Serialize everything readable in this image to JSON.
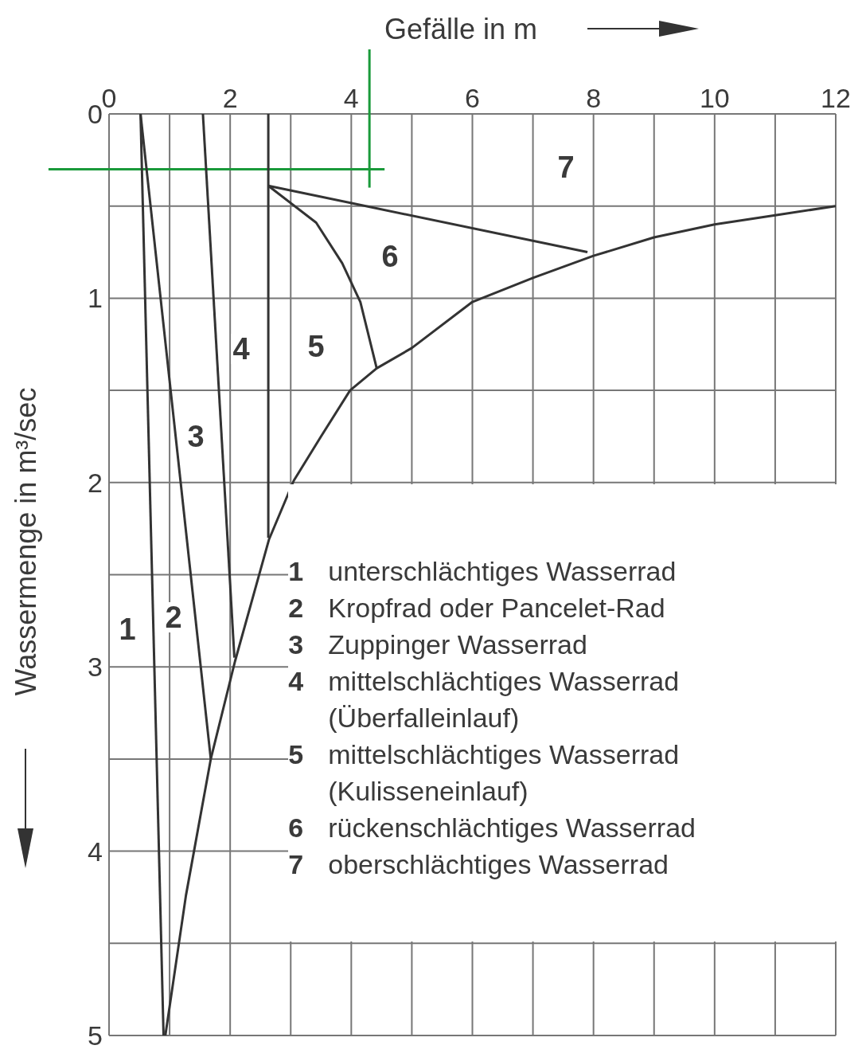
{
  "chart_data": {
    "type": "line",
    "xlabel": "Gefälle in m",
    "ylabel": "Wassermenge in m³/sec",
    "xlim": [
      0,
      12
    ],
    "xticks": [
      0,
      2,
      4,
      6,
      8,
      10,
      12,
      {
        "value": 1,
        "label": null
      },
      {
        "value": 3,
        "label": null
      },
      {
        "value": 5,
        "label": null
      },
      {
        "value": 7,
        "label": null
      },
      {
        "value": 9,
        "label": null
      },
      {
        "value": 11,
        "label": null
      }
    ],
    "ylim": [
      5,
      0
    ],
    "yticks": [
      0,
      1,
      2,
      3,
      4,
      5,
      {
        "value": 0.5,
        "label": null
      },
      {
        "value": 1.5,
        "label": null
      },
      {
        "value": 2.5,
        "label": null
      },
      {
        "value": 3.5,
        "label": null
      },
      {
        "value": 4.5,
        "label": null
      }
    ],
    "grid": true,
    "marker": "none",
    "line_style": "solid",
    "series": [
      {
        "color": "#333333",
        "x": [
          0.52,
          0.9
        ],
        "values": [
          0,
          5
        ]
      },
      {
        "color": "#333333",
        "x": [
          0.52,
          1.68
        ],
        "values": [
          0,
          3.5
        ]
      },
      {
        "color": "#333333",
        "x": [
          1.55,
          2.07
        ],
        "values": [
          0,
          2.95
        ]
      },
      {
        "color": "#333333",
        "x": [
          2.63,
          2.63
        ],
        "values": [
          0,
          2.3
        ]
      },
      {
        "color": "#333333",
        "x": [
          2.63,
          7.9
        ],
        "values": [
          0.39,
          0.75
        ]
      },
      {
        "color": "#333333",
        "x": [
          2.63,
          3.42,
          3.85,
          4.15,
          4.42
        ],
        "values": [
          0.39,
          0.59,
          0.81,
          1.02,
          1.38
        ]
      },
      {
        "color": "#333333",
        "x": [
          0.93,
          1.27,
          1.68,
          2.08,
          2.64,
          3.05,
          3.5,
          3.98,
          4.42,
          5,
          6,
          7,
          8,
          9,
          10,
          11,
          12
        ],
        "values": [
          5,
          4.24,
          3.5,
          2.97,
          2.31,
          1.99,
          1.75,
          1.5,
          1.38,
          1.27,
          1.02,
          0.89,
          0.77,
          0.67,
          0.6,
          0.55,
          0.5
        ]
      }
    ],
    "ref_lines": [
      {
        "axis": "y",
        "value": 0.3,
        "color": "#1a9a3a"
      },
      {
        "axis": "x",
        "value": 4.3,
        "color": "#1a9a3a"
      }
    ],
    "annotations": [
      "1",
      "2",
      "3",
      "4",
      "5",
      "6",
      "7",
      "1 unterschlächtiges Wasserrad",
      "2 Kropfrad oder Pancelet-Rad",
      "3 Zuppinger Wasserrad",
      "4 mittelschlächtiges Wasserrad (Überfalleinlauf)",
      "5 mittelschlächtiges Wasserrad (Kulisseneinlauf)",
      "6 rückenschlächtiges Wasserrad",
      "7 oberschlächtiges Wasserrad"
    ]
  }
}
